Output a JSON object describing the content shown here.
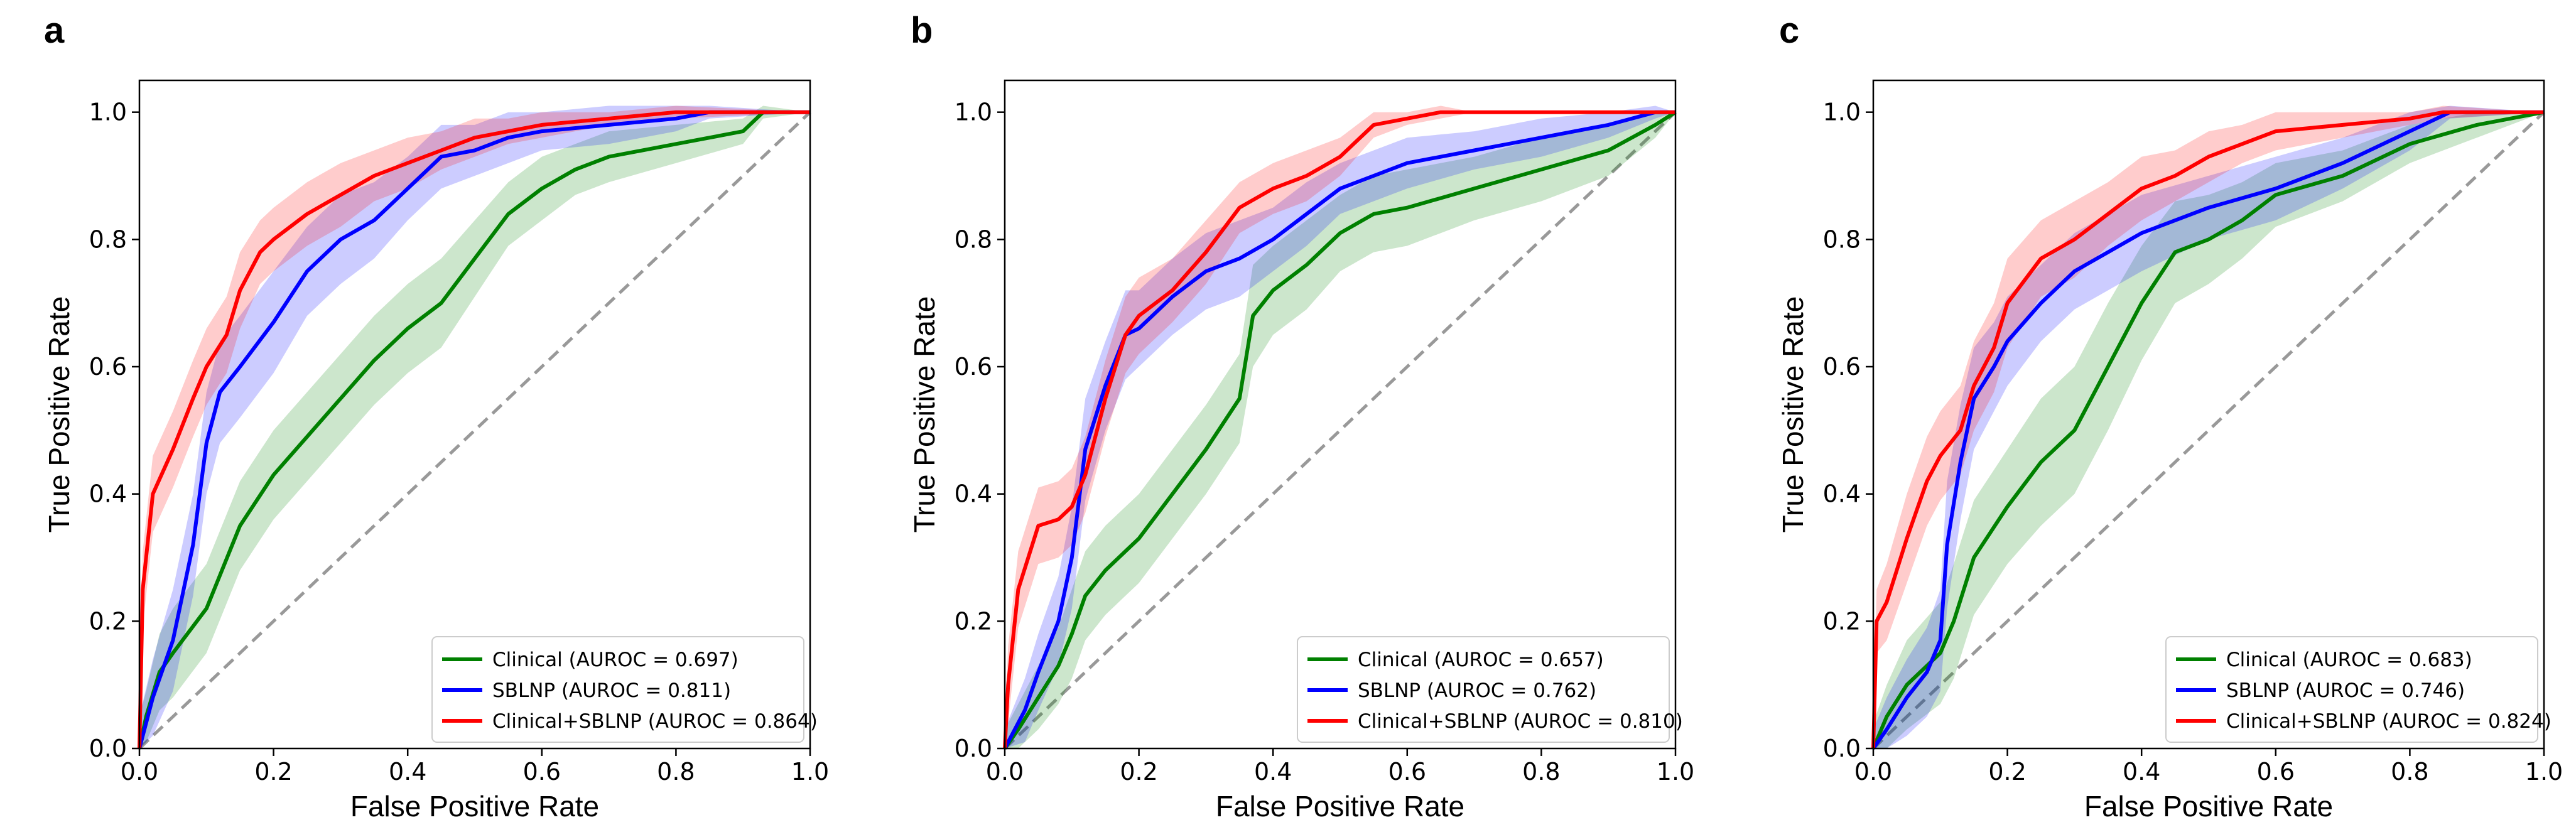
{
  "figure": {
    "panel_labels": [
      "a",
      "b",
      "c"
    ]
  },
  "chart_data": [
    {
      "type": "line",
      "panel": "a",
      "xlabel": "False Positive Rate",
      "ylabel": "True Positive Rate",
      "xlim": [
        0.0,
        1.0
      ],
      "ylim": [
        0.0,
        1.05
      ],
      "xticks": [
        "0.0",
        "0.2",
        "0.4",
        "0.6",
        "0.8",
        "1.0"
      ],
      "yticks": [
        "0.0",
        "0.2",
        "0.4",
        "0.6",
        "0.8",
        "1.0"
      ],
      "legend_position": "lower-right",
      "diagonal": {
        "style": "dashed",
        "color": "#999999"
      },
      "series": [
        {
          "name": "Clinical (AUROC = 0.697)",
          "color": "#008000",
          "x": [
            0,
            0.01,
            0.03,
            0.05,
            0.1,
            0.15,
            0.2,
            0.25,
            0.3,
            0.35,
            0.4,
            0.45,
            0.5,
            0.55,
            0.6,
            0.65,
            0.7,
            0.8,
            0.9,
            0.93,
            1.0
          ],
          "y": [
            0,
            0.05,
            0.12,
            0.15,
            0.22,
            0.35,
            0.43,
            0.49,
            0.55,
            0.61,
            0.66,
            0.7,
            0.77,
            0.84,
            0.88,
            0.91,
            0.93,
            0.95,
            0.97,
            1.0,
            1.0
          ],
          "band": [
            0.05,
            0.04,
            0.06,
            0.07,
            0.07,
            0.07,
            0.07,
            0.07,
            0.07,
            0.07,
            0.07,
            0.07,
            0.06,
            0.05,
            0.05,
            0.04,
            0.04,
            0.03,
            0.02,
            0.01,
            0
          ]
        },
        {
          "name": "SBLNP (AUROC = 0.811)",
          "color": "#0000ff",
          "x": [
            0,
            0.02,
            0.05,
            0.08,
            0.1,
            0.12,
            0.15,
            0.2,
            0.25,
            0.3,
            0.35,
            0.4,
            0.45,
            0.5,
            0.55,
            0.6,
            0.7,
            0.8,
            0.85,
            1.0
          ],
          "y": [
            0,
            0.08,
            0.17,
            0.32,
            0.48,
            0.56,
            0.6,
            0.67,
            0.75,
            0.8,
            0.83,
            0.88,
            0.93,
            0.94,
            0.96,
            0.97,
            0.98,
            0.99,
            1.0,
            1.0
          ],
          "band": [
            0.05,
            0.06,
            0.08,
            0.08,
            0.08,
            0.08,
            0.08,
            0.08,
            0.07,
            0.07,
            0.06,
            0.05,
            0.05,
            0.04,
            0.04,
            0.03,
            0.03,
            0.02,
            0.01,
            0
          ]
        },
        {
          "name": "Clinical+SBLNP (AUROC = 0.864)",
          "color": "#ff0000",
          "x": [
            0,
            0.005,
            0.02,
            0.05,
            0.08,
            0.1,
            0.13,
            0.15,
            0.18,
            0.2,
            0.25,
            0.3,
            0.35,
            0.4,
            0.45,
            0.5,
            0.55,
            0.6,
            0.7,
            0.8,
            1.0
          ],
          "y": [
            0,
            0.25,
            0.4,
            0.47,
            0.55,
            0.6,
            0.65,
            0.72,
            0.78,
            0.8,
            0.84,
            0.87,
            0.9,
            0.92,
            0.94,
            0.96,
            0.97,
            0.98,
            0.99,
            1.0,
            1.0
          ],
          "band": [
            0.05,
            0.06,
            0.06,
            0.06,
            0.06,
            0.06,
            0.06,
            0.06,
            0.05,
            0.05,
            0.05,
            0.05,
            0.04,
            0.04,
            0.03,
            0.03,
            0.02,
            0.02,
            0.01,
            0.01,
            0
          ]
        }
      ]
    },
    {
      "type": "line",
      "panel": "b",
      "xlabel": "False Positive Rate",
      "ylabel": "True Positive Rate",
      "xlim": [
        0.0,
        1.0
      ],
      "ylim": [
        0.0,
        1.05
      ],
      "xticks": [
        "0.0",
        "0.2",
        "0.4",
        "0.6",
        "0.8",
        "1.0"
      ],
      "yticks": [
        "0.0",
        "0.2",
        "0.4",
        "0.6",
        "0.8",
        "1.0"
      ],
      "legend_position": "lower-right",
      "diagonal": {
        "style": "dashed",
        "color": "#999999"
      },
      "series": [
        {
          "name": "Clinical (AUROC = 0.657)",
          "color": "#008000",
          "x": [
            0,
            0.02,
            0.05,
            0.08,
            0.1,
            0.12,
            0.15,
            0.2,
            0.25,
            0.3,
            0.35,
            0.37,
            0.4,
            0.45,
            0.5,
            0.55,
            0.6,
            0.7,
            0.8,
            0.9,
            0.97,
            1.0
          ],
          "y": [
            0,
            0.03,
            0.08,
            0.13,
            0.18,
            0.24,
            0.28,
            0.33,
            0.4,
            0.47,
            0.55,
            0.68,
            0.72,
            0.76,
            0.81,
            0.84,
            0.85,
            0.88,
            0.91,
            0.94,
            0.98,
            1.0
          ],
          "band": [
            0.03,
            0.04,
            0.05,
            0.06,
            0.07,
            0.07,
            0.07,
            0.07,
            0.07,
            0.07,
            0.07,
            0.08,
            0.07,
            0.07,
            0.06,
            0.06,
            0.06,
            0.05,
            0.05,
            0.04,
            0.02,
            0
          ]
        },
        {
          "name": "SBLNP (AUROC = 0.762)",
          "color": "#0000ff",
          "x": [
            0,
            0.03,
            0.05,
            0.08,
            0.1,
            0.12,
            0.15,
            0.18,
            0.2,
            0.25,
            0.3,
            0.35,
            0.4,
            0.45,
            0.5,
            0.55,
            0.6,
            0.7,
            0.8,
            0.9,
            0.97,
            1.0
          ],
          "y": [
            0,
            0.06,
            0.12,
            0.2,
            0.3,
            0.47,
            0.57,
            0.65,
            0.66,
            0.71,
            0.75,
            0.77,
            0.8,
            0.84,
            0.88,
            0.9,
            0.92,
            0.94,
            0.96,
            0.98,
            1.0,
            1.0
          ],
          "band": [
            0.03,
            0.05,
            0.06,
            0.07,
            0.08,
            0.08,
            0.07,
            0.07,
            0.06,
            0.06,
            0.06,
            0.06,
            0.05,
            0.05,
            0.04,
            0.04,
            0.04,
            0.03,
            0.03,
            0.02,
            0.01,
            0
          ]
        },
        {
          "name": "Clinical+SBLNP (AUROC = 0.810)",
          "color": "#ff0000",
          "x": [
            0,
            0.005,
            0.02,
            0.05,
            0.08,
            0.1,
            0.12,
            0.15,
            0.18,
            0.2,
            0.25,
            0.3,
            0.35,
            0.4,
            0.45,
            0.5,
            0.55,
            0.6,
            0.65,
            0.7,
            0.8,
            1.0
          ],
          "y": [
            0,
            0.1,
            0.25,
            0.35,
            0.36,
            0.38,
            0.43,
            0.55,
            0.65,
            0.68,
            0.72,
            0.78,
            0.85,
            0.88,
            0.9,
            0.93,
            0.98,
            0.99,
            1.0,
            1.0,
            1.0,
            1.0
          ],
          "band": [
            0.04,
            0.06,
            0.06,
            0.06,
            0.06,
            0.06,
            0.06,
            0.06,
            0.06,
            0.06,
            0.05,
            0.05,
            0.04,
            0.04,
            0.04,
            0.03,
            0.02,
            0.01,
            0.01,
            0,
            0,
            0
          ]
        }
      ]
    },
    {
      "type": "line",
      "panel": "c",
      "xlabel": "False Positive Rate",
      "ylabel": "True Positive Rate",
      "xlim": [
        0.0,
        1.0
      ],
      "ylim": [
        0.0,
        1.05
      ],
      "xticks": [
        "0.0",
        "0.2",
        "0.4",
        "0.6",
        "0.8",
        "1.0"
      ],
      "yticks": [
        "0.0",
        "0.2",
        "0.4",
        "0.6",
        "0.8",
        "1.0"
      ],
      "legend_position": "lower-right",
      "diagonal": {
        "style": "dashed",
        "color": "#999999"
      },
      "series": [
        {
          "name": "Clinical (AUROC = 0.683)",
          "color": "#008000",
          "x": [
            0,
            0.02,
            0.05,
            0.1,
            0.12,
            0.15,
            0.2,
            0.25,
            0.3,
            0.35,
            0.4,
            0.45,
            0.5,
            0.55,
            0.6,
            0.7,
            0.8,
            0.9,
            1.0
          ],
          "y": [
            0,
            0.05,
            0.1,
            0.15,
            0.2,
            0.3,
            0.38,
            0.45,
            0.5,
            0.6,
            0.7,
            0.78,
            0.8,
            0.83,
            0.87,
            0.9,
            0.95,
            0.98,
            1.0
          ],
          "band": [
            0.04,
            0.05,
            0.07,
            0.08,
            0.09,
            0.09,
            0.09,
            0.1,
            0.1,
            0.1,
            0.09,
            0.08,
            0.07,
            0.06,
            0.05,
            0.04,
            0.03,
            0.02,
            0
          ]
        },
        {
          "name": "SBLNP (AUROC = 0.746)",
          "color": "#0000ff",
          "x": [
            0,
            0.02,
            0.05,
            0.08,
            0.1,
            0.11,
            0.13,
            0.15,
            0.18,
            0.2,
            0.25,
            0.3,
            0.35,
            0.4,
            0.5,
            0.6,
            0.7,
            0.8,
            0.86,
            1.0
          ],
          "y": [
            0,
            0.03,
            0.08,
            0.12,
            0.17,
            0.32,
            0.45,
            0.55,
            0.6,
            0.64,
            0.7,
            0.75,
            0.78,
            0.81,
            0.85,
            0.88,
            0.92,
            0.97,
            1.0,
            1.0
          ],
          "band": [
            0.03,
            0.05,
            0.06,
            0.07,
            0.08,
            0.1,
            0.09,
            0.08,
            0.07,
            0.07,
            0.06,
            0.06,
            0.06,
            0.06,
            0.05,
            0.05,
            0.04,
            0.03,
            0.01,
            0
          ]
        },
        {
          "name": "Clinical+SBLNP (AUROC = 0.824)",
          "color": "#ff0000",
          "x": [
            0,
            0.005,
            0.02,
            0.05,
            0.08,
            0.1,
            0.13,
            0.15,
            0.18,
            0.2,
            0.25,
            0.3,
            0.35,
            0.4,
            0.45,
            0.5,
            0.55,
            0.6,
            0.7,
            0.8,
            0.85,
            1.0
          ],
          "y": [
            0,
            0.2,
            0.23,
            0.33,
            0.42,
            0.46,
            0.5,
            0.57,
            0.63,
            0.7,
            0.77,
            0.8,
            0.84,
            0.88,
            0.9,
            0.93,
            0.95,
            0.97,
            0.98,
            0.99,
            1.0,
            1.0
          ],
          "band": [
            0.04,
            0.05,
            0.06,
            0.07,
            0.07,
            0.07,
            0.07,
            0.07,
            0.07,
            0.07,
            0.06,
            0.06,
            0.05,
            0.05,
            0.04,
            0.04,
            0.03,
            0.03,
            0.02,
            0.01,
            0.01,
            0
          ]
        }
      ]
    }
  ]
}
